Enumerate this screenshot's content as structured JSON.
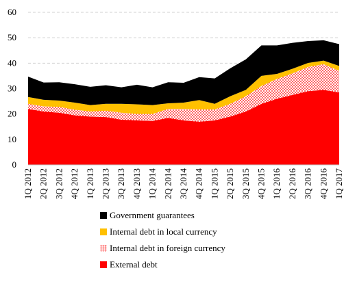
{
  "chart_data": {
    "type": "area",
    "stacked": true,
    "title": "",
    "xlabel": "",
    "ylabel": "",
    "ylim": [
      0,
      60
    ],
    "y_ticks": [
      0,
      10,
      20,
      30,
      40,
      50,
      60
    ],
    "grid": "horizontal dashed",
    "legend_position": "bottom",
    "categories": [
      "1Q 2012",
      "2Q 2012",
      "3Q 2012",
      "4Q 2012",
      "1Q 2013",
      "2Q 2013",
      "3Q 2013",
      "4Q 2013",
      "1Q 2014",
      "2Q 2014",
      "3Q 2014",
      "4Q 2014",
      "1Q 2015",
      "2Q 2015",
      "3Q 2015",
      "4Q 2015",
      "1Q 2016",
      "2Q 2016",
      "3Q 2016",
      "4Q 2016",
      "1Q 2017"
    ],
    "x_tick_labels": [
      "1Q 2012",
      "2Q 2012",
      "3Q 2012",
      "4Q 2012",
      "1Q 2013",
      "2Q 2013",
      "3Q 2013",
      "4Q 2013",
      "1Q 2014",
      "2Q 2014",
      "3Q 2014",
      "4Q 2014",
      "1Q 2015",
      "2Q 2015",
      "3Q 2015",
      "4Q 2015",
      "1Q 2016",
      "2Q 2016",
      "3Q 2016",
      "4Q 2016",
      "1Q 2017"
    ],
    "series": [
      {
        "name": "External debt",
        "color": "#ff0000",
        "pattern": "solid",
        "values": [
          22,
          21,
          20.5,
          19.5,
          19,
          18.8,
          17.8,
          17.5,
          17.3,
          18.5,
          17.5,
          17,
          17.5,
          19,
          21,
          24,
          26,
          27.5,
          29,
          29.5,
          28.5
        ]
      },
      {
        "name": "Internal debt in foreign currency",
        "color": "#ff0000",
        "pattern": "dots",
        "values": [
          2,
          2,
          2.3,
          2.2,
          2,
          2.5,
          2.7,
          2.5,
          2.7,
          3.5,
          4.5,
          4.8,
          4.3,
          5,
          6,
          7,
          7.8,
          8.5,
          9.5,
          10.1,
          8.5
        ]
      },
      {
        "name": "Internal debt in local currency",
        "color": "#ffc000",
        "pattern": "solid",
        "values": [
          2.7,
          2.6,
          2.5,
          2.8,
          2.5,
          2.7,
          3.5,
          3.8,
          3.5,
          2.2,
          2.5,
          3.7,
          2.2,
          3,
          2.5,
          4,
          2,
          1.8,
          1.6,
          1.4,
          1.9
        ]
      },
      {
        "name": "Government guarantees",
        "color": "#000000",
        "pattern": "solid",
        "values": [
          8,
          6.8,
          7.2,
          7.2,
          7.2,
          7.3,
          6.5,
          7.7,
          7,
          8.3,
          7.8,
          9,
          10,
          11,
          12,
          12,
          11.2,
          10.2,
          8.6,
          8,
          8.6
        ]
      }
    ]
  }
}
